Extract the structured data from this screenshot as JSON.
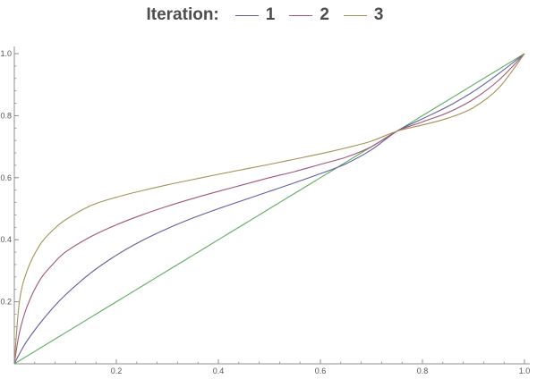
{
  "chart_data": {
    "type": "line",
    "title": "",
    "legend": {
      "title": "Iteration:",
      "placement": "top-center",
      "entries": [
        {
          "label": "1",
          "color": "#5e5ea2"
        },
        {
          "label": "2",
          "color": "#a2557a"
        },
        {
          "label": "3",
          "color": "#a29257"
        }
      ]
    },
    "xlabel": "",
    "ylabel": "",
    "xlim": [
      0,
      1
    ],
    "ylim": [
      0,
      1
    ],
    "grid": false,
    "xticks": {
      "values": [
        0.2,
        0.4,
        0.6,
        0.8,
        1.0
      ],
      "labels": [
        "0.2",
        "0.4",
        "0.6",
        "0.8",
        "1.0"
      ]
    },
    "yticks": {
      "values": [
        0.2,
        0.4,
        0.6,
        0.8,
        1.0
      ],
      "labels": [
        "0.2",
        "0.4",
        "0.6",
        "0.8",
        "1.0"
      ]
    },
    "x": [
      0,
      0.01,
      0.025,
      0.05,
      0.075,
      0.1,
      0.15,
      0.2,
      0.25,
      0.3,
      0.35,
      0.4,
      0.45,
      0.5,
      0.55,
      0.6,
      0.65,
      0.7,
      0.75,
      0.8,
      0.85,
      0.9,
      0.95,
      1.0
    ],
    "series": [
      {
        "color": "#5fac5f",
        "values": [
          0,
          0.01,
          0.025,
          0.05,
          0.075,
          0.1,
          0.15,
          0.2,
          0.25,
          0.3,
          0.35,
          0.4,
          0.45,
          0.5,
          0.55,
          0.6,
          0.65,
          0.7,
          0.75,
          0.8,
          0.85,
          0.9,
          0.95,
          1.0
        ]
      },
      {
        "name": "1",
        "color": "#5e5ea2",
        "values": [
          0,
          0.032,
          0.074,
          0.13,
          0.179,
          0.222,
          0.293,
          0.35,
          0.397,
          0.436,
          0.47,
          0.5,
          0.528,
          0.556,
          0.584,
          0.613,
          0.645,
          0.69,
          0.75,
          0.79,
          0.83,
          0.878,
          0.936,
          1.0
        ]
      },
      {
        "name": "2",
        "color": "#a2557a",
        "values": [
          0,
          0.1,
          0.185,
          0.27,
          0.32,
          0.36,
          0.41,
          0.448,
          0.48,
          0.508,
          0.533,
          0.556,
          0.578,
          0.6,
          0.62,
          0.643,
          0.666,
          0.7,
          0.75,
          0.78,
          0.81,
          0.853,
          0.915,
          1.0
        ]
      },
      {
        "name": "3",
        "color": "#a29257",
        "values": [
          0,
          0.2,
          0.3,
          0.383,
          0.43,
          0.464,
          0.51,
          0.537,
          0.558,
          0.577,
          0.594,
          0.611,
          0.627,
          0.643,
          0.66,
          0.677,
          0.696,
          0.718,
          0.75,
          0.77,
          0.792,
          0.826,
          0.89,
          1.0
        ]
      }
    ]
  }
}
